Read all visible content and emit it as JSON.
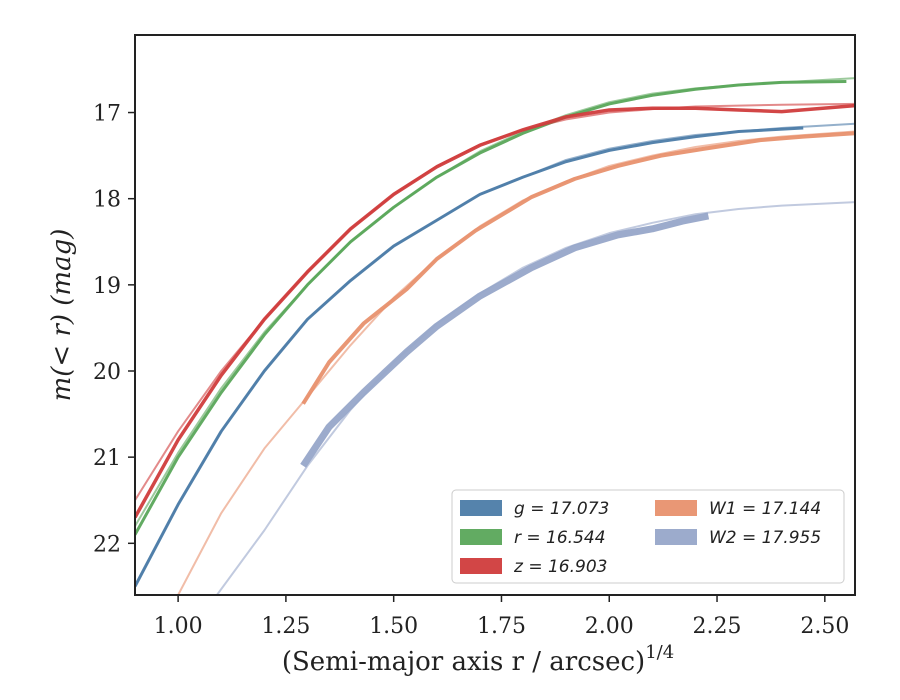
{
  "chart_data": {
    "type": "line",
    "xlabel": "(Semi-major axis r / arcsec)",
    "xlabel_sup": "1/4",
    "ylabel": "m(< r) (mag)",
    "xlim": [
      0.9,
      2.57
    ],
    "ylim": [
      22.6,
      16.1
    ],
    "y_inverted": true,
    "grid": false,
    "legend_placement": "lower-right",
    "xticks": [
      1.0,
      1.25,
      1.5,
      1.75,
      2.0,
      2.25,
      2.5
    ],
    "xtick_labels": [
      "1.00",
      "1.25",
      "1.50",
      "1.75",
      "2.00",
      "2.25",
      "2.50"
    ],
    "yticks": [
      17,
      18,
      19,
      20,
      21,
      22
    ],
    "ytick_labels": [
      "17",
      "18",
      "19",
      "20",
      "21",
      "22"
    ],
    "series": [
      {
        "name": "g = 17.073",
        "color": "#4c7ca8",
        "model": {
          "x": [
            0.9,
            1.0,
            1.1,
            1.2,
            1.3,
            1.4,
            1.5,
            1.6,
            1.7,
            1.8,
            1.9,
            2.0,
            2.1,
            2.2,
            2.3,
            2.4,
            2.57
          ],
          "y": [
            22.5,
            21.55,
            20.7,
            20.0,
            19.4,
            18.95,
            18.55,
            18.25,
            17.95,
            17.75,
            17.55,
            17.42,
            17.33,
            17.26,
            17.22,
            17.18,
            17.13
          ]
        },
        "data": {
          "x": [
            0.9,
            1.0,
            1.1,
            1.2,
            1.3,
            1.4,
            1.5,
            1.6,
            1.7,
            1.8,
            1.9,
            2.0,
            2.1,
            2.2,
            2.3,
            2.45
          ],
          "y": [
            22.5,
            21.55,
            20.7,
            20.0,
            19.4,
            18.95,
            18.55,
            18.25,
            17.95,
            17.75,
            17.57,
            17.44,
            17.35,
            17.28,
            17.22,
            17.18
          ]
        }
      },
      {
        "name": "r = 16.544",
        "color": "#5aa65a",
        "model": {
          "x": [
            0.9,
            1.0,
            1.1,
            1.2,
            1.3,
            1.4,
            1.5,
            1.6,
            1.7,
            1.8,
            1.9,
            2.0,
            2.1,
            2.2,
            2.3,
            2.4,
            2.57
          ],
          "y": [
            21.8,
            20.95,
            20.2,
            19.55,
            19.0,
            18.5,
            18.1,
            17.75,
            17.45,
            17.22,
            17.03,
            16.88,
            16.78,
            16.72,
            16.68,
            16.65,
            16.6
          ]
        },
        "data": {
          "x": [
            0.9,
            1.0,
            1.1,
            1.2,
            1.3,
            1.4,
            1.5,
            1.6,
            1.7,
            1.8,
            1.9,
            2.0,
            2.1,
            2.2,
            2.3,
            2.4,
            2.55
          ],
          "y": [
            21.9,
            21.0,
            20.25,
            19.58,
            19.0,
            18.5,
            18.1,
            17.75,
            17.47,
            17.24,
            17.05,
            16.9,
            16.8,
            16.73,
            16.68,
            16.65,
            16.64
          ]
        }
      },
      {
        "name": "z = 16.903",
        "color": "#d03c3c",
        "model": {
          "x": [
            0.9,
            1.0,
            1.1,
            1.2,
            1.3,
            1.4,
            1.5,
            1.6,
            1.7,
            1.8,
            1.9,
            2.0,
            2.1,
            2.2,
            2.3,
            2.4,
            2.57
          ],
          "y": [
            21.5,
            20.7,
            20.0,
            19.4,
            18.85,
            18.35,
            17.95,
            17.62,
            17.37,
            17.2,
            17.08,
            17.0,
            16.96,
            16.93,
            16.92,
            16.91,
            16.9
          ]
        },
        "data": {
          "x": [
            0.9,
            1.0,
            1.1,
            1.2,
            1.3,
            1.4,
            1.5,
            1.6,
            1.7,
            1.8,
            1.9,
            2.0,
            2.1,
            2.2,
            2.3,
            2.4,
            2.57
          ],
          "y": [
            21.7,
            20.8,
            20.05,
            19.4,
            18.85,
            18.35,
            17.95,
            17.63,
            17.38,
            17.2,
            17.05,
            16.97,
            16.95,
            16.95,
            16.97,
            16.99,
            16.92
          ]
        }
      },
      {
        "name": "W1 = 17.144",
        "color": "#e8916e",
        "model": {
          "x": [
            1.0,
            1.1,
            1.2,
            1.3,
            1.4,
            1.5,
            1.6,
            1.7,
            1.8,
            1.9,
            2.0,
            2.1,
            2.2,
            2.3,
            2.4,
            2.57
          ],
          "y": [
            22.6,
            21.65,
            20.9,
            20.3,
            19.7,
            19.15,
            18.7,
            18.32,
            18.02,
            17.8,
            17.62,
            17.5,
            17.4,
            17.33,
            17.28,
            17.22
          ]
        },
        "data": {
          "x": [
            1.29,
            1.35,
            1.43,
            1.53,
            1.6,
            1.69,
            1.82,
            1.92,
            2.02,
            2.12,
            2.22,
            2.35,
            2.45,
            2.57
          ],
          "y": [
            20.38,
            19.9,
            19.45,
            19.05,
            18.7,
            18.37,
            17.98,
            17.77,
            17.62,
            17.5,
            17.42,
            17.32,
            17.28,
            17.24
          ]
        }
      },
      {
        "name": "W2 = 17.955",
        "color": "#97a6c9",
        "model": {
          "x": [
            1.09,
            1.2,
            1.3,
            1.4,
            1.5,
            1.6,
            1.7,
            1.8,
            1.9,
            2.0,
            2.1,
            2.2,
            2.3,
            2.4,
            2.57
          ],
          "y": [
            22.6,
            21.85,
            21.1,
            20.45,
            19.9,
            19.45,
            19.1,
            18.8,
            18.57,
            18.4,
            18.28,
            18.18,
            18.12,
            18.08,
            18.04
          ]
        },
        "data": {
          "x": [
            1.29,
            1.35,
            1.43,
            1.53,
            1.6,
            1.7,
            1.82,
            1.92,
            2.02,
            2.1,
            2.17,
            2.23
          ],
          "y": [
            21.1,
            20.65,
            20.25,
            19.78,
            19.48,
            19.13,
            18.8,
            18.57,
            18.42,
            18.35,
            18.26,
            18.2
          ]
        }
      }
    ]
  }
}
